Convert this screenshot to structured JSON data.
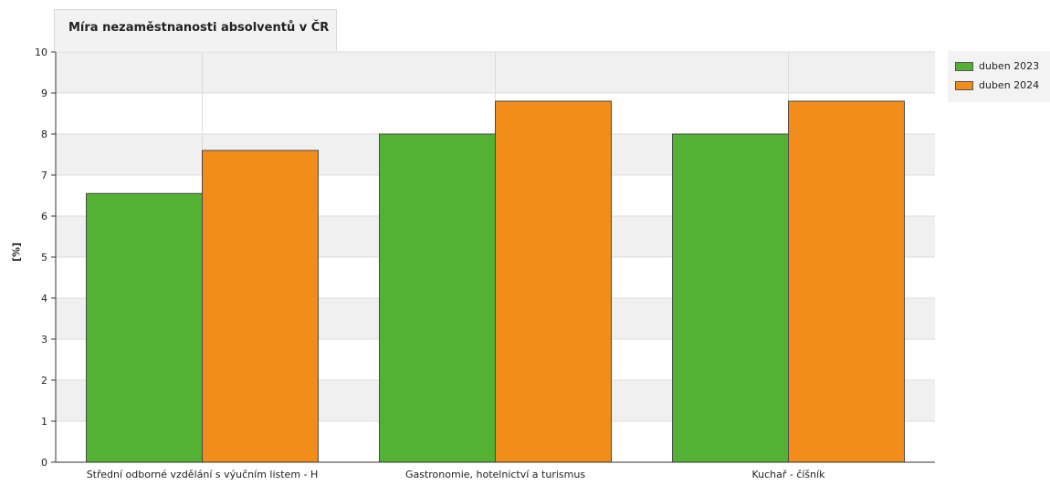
{
  "chart_data": {
    "type": "bar",
    "title": "Míra nezaměstnanosti absolventů v ČR",
    "ylabel": "[%]",
    "xlabel": "",
    "ylim": [
      0,
      10
    ],
    "yticks": [
      0,
      1,
      2,
      3,
      4,
      5,
      6,
      7,
      8,
      9,
      10
    ],
    "grid": true,
    "legend_position": "top-right",
    "categories": [
      "Střední odborné vzdělání s výučním listem - H",
      "Gastronomie, hotelnictví a turismus",
      "Kuchař - číšník"
    ],
    "series": [
      {
        "name": "duben 2023",
        "color": "#53b233",
        "values": [
          6.55,
          8.0,
          8.0
        ]
      },
      {
        "name": "duben 2024",
        "color": "#f28c1a",
        "values": [
          7.6,
          8.8,
          8.8
        ]
      }
    ]
  }
}
